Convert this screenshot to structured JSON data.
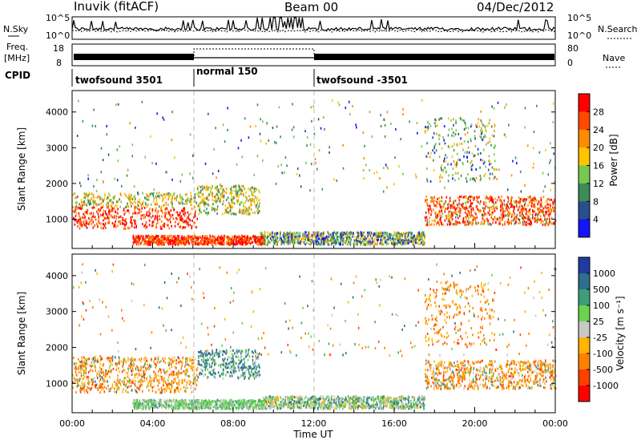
{
  "header": {
    "station": "Inuvik (fitACF)",
    "beam": "Beam 00",
    "date": "04/Dec/2012"
  },
  "noise_panel": {
    "left_label": "N.Sky",
    "right_label": "N.Search",
    "left_ticks": [
      "10^5",
      "10^0"
    ],
    "right_ticks": [
      "10^5",
      "10^0"
    ]
  },
  "freq_panel": {
    "left_label_line1": "Freq.",
    "left_label_line2": "[MHz]",
    "right_label": "Nave",
    "left_ticks": [
      "18",
      "8"
    ],
    "right_ticks": [
      "80",
      "0"
    ]
  },
  "cpid": {
    "label": "CPID",
    "segments": [
      {
        "name": "twofsound 3501",
        "start_hour": 0,
        "end_hour": 6
      },
      {
        "name": "normal 150",
        "start_hour": 6,
        "end_hour": 12
      },
      {
        "name": "twofsound -3501",
        "start_hour": 12,
        "end_hour": 24
      }
    ]
  },
  "chart_data": [
    {
      "type": "heatmap",
      "title": "",
      "xlabel": "",
      "ylabel": "Slant Range [km]",
      "xlim": [
        0,
        24
      ],
      "ylim": [
        180,
        4600
      ],
      "yticks": [
        1000,
        2000,
        3000,
        4000
      ],
      "colorbar": {
        "label": "Power [dB]",
        "ticks": [
          "28",
          "24",
          "20",
          "16",
          "12",
          "8",
          "4"
        ],
        "colors": [
          "#ff0000",
          "#ff4a00",
          "#ff8c00",
          "#ffc400",
          "#78c850",
          "#3c8c5a",
          "#28508c",
          "#1414ff"
        ]
      },
      "colorbar_range": [
        0,
        32
      ]
    },
    {
      "type": "heatmap",
      "title": "",
      "xlabel": "Time UT",
      "ylabel": "Slant Range [km]",
      "xlim": [
        0,
        24
      ],
      "ylim": [
        180,
        4600
      ],
      "yticks": [
        1000,
        2000,
        3000,
        4000
      ],
      "xtick_labels": [
        "00:00",
        "04:00",
        "08:00",
        "12:00",
        "16:00",
        "20:00",
        "00:00"
      ],
      "colorbar": {
        "label": "Velocity  [m s⁻¹]",
        "ticks": [
          "1000",
          "500",
          "100",
          "25",
          "-25",
          "-100",
          "-500",
          "-1000"
        ],
        "colors": [
          "#1e3ca0",
          "#2e6e8e",
          "#3e9e78",
          "#6cd250",
          "#c8c8c8",
          "#ffb400",
          "#ff8000",
          "#ff4000",
          "#ff0000"
        ]
      },
      "colorbar_range": [
        -1000,
        1000
      ]
    }
  ]
}
